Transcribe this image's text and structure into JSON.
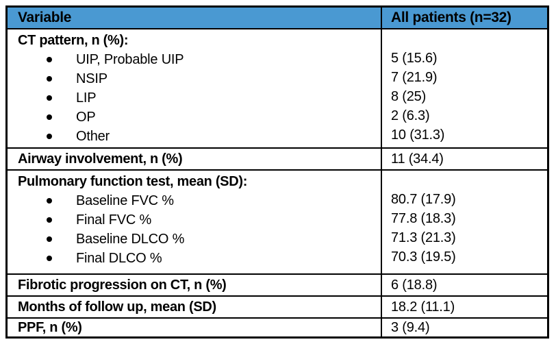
{
  "table": {
    "accent_color": "#4A99D2",
    "border_color": "#000000",
    "header": {
      "variable": "Variable",
      "patients": "All patients (n=32)"
    },
    "rows": [
      {
        "type": "group",
        "label": "CT pattern, n (%):",
        "items": [
          "UIP, Probable UIP",
          "NSIP",
          "LIP",
          "OP",
          "Other"
        ],
        "values": [
          "5 (15.6)",
          "7 (21.9)",
          "8 (25)",
          "2 (6.3)",
          "10 (31.3)"
        ]
      },
      {
        "type": "simple",
        "label": "Airway involvement, n (%)",
        "value": "11 (34.4)"
      },
      {
        "type": "group",
        "label": "Pulmonary function test, mean (SD):",
        "items": [
          "Baseline FVC %",
          "Final FVC %",
          "Baseline DLCO %",
          "Final DLCO %"
        ],
        "values": [
          "80.7 (17.9)",
          "77.8 (18.3)",
          "71.3 (21.3)",
          "70.3 (19.5)"
        ]
      },
      {
        "type": "simple",
        "label": "Fibrotic progression on CT, n (%)",
        "value": "6 (18.8)"
      },
      {
        "type": "simple",
        "label": "Months of follow up, mean (SD)",
        "value": "18.2 (11.1)"
      },
      {
        "type": "simple",
        "label": "PPF, n (%)",
        "value": "3 (9.4)"
      }
    ]
  }
}
